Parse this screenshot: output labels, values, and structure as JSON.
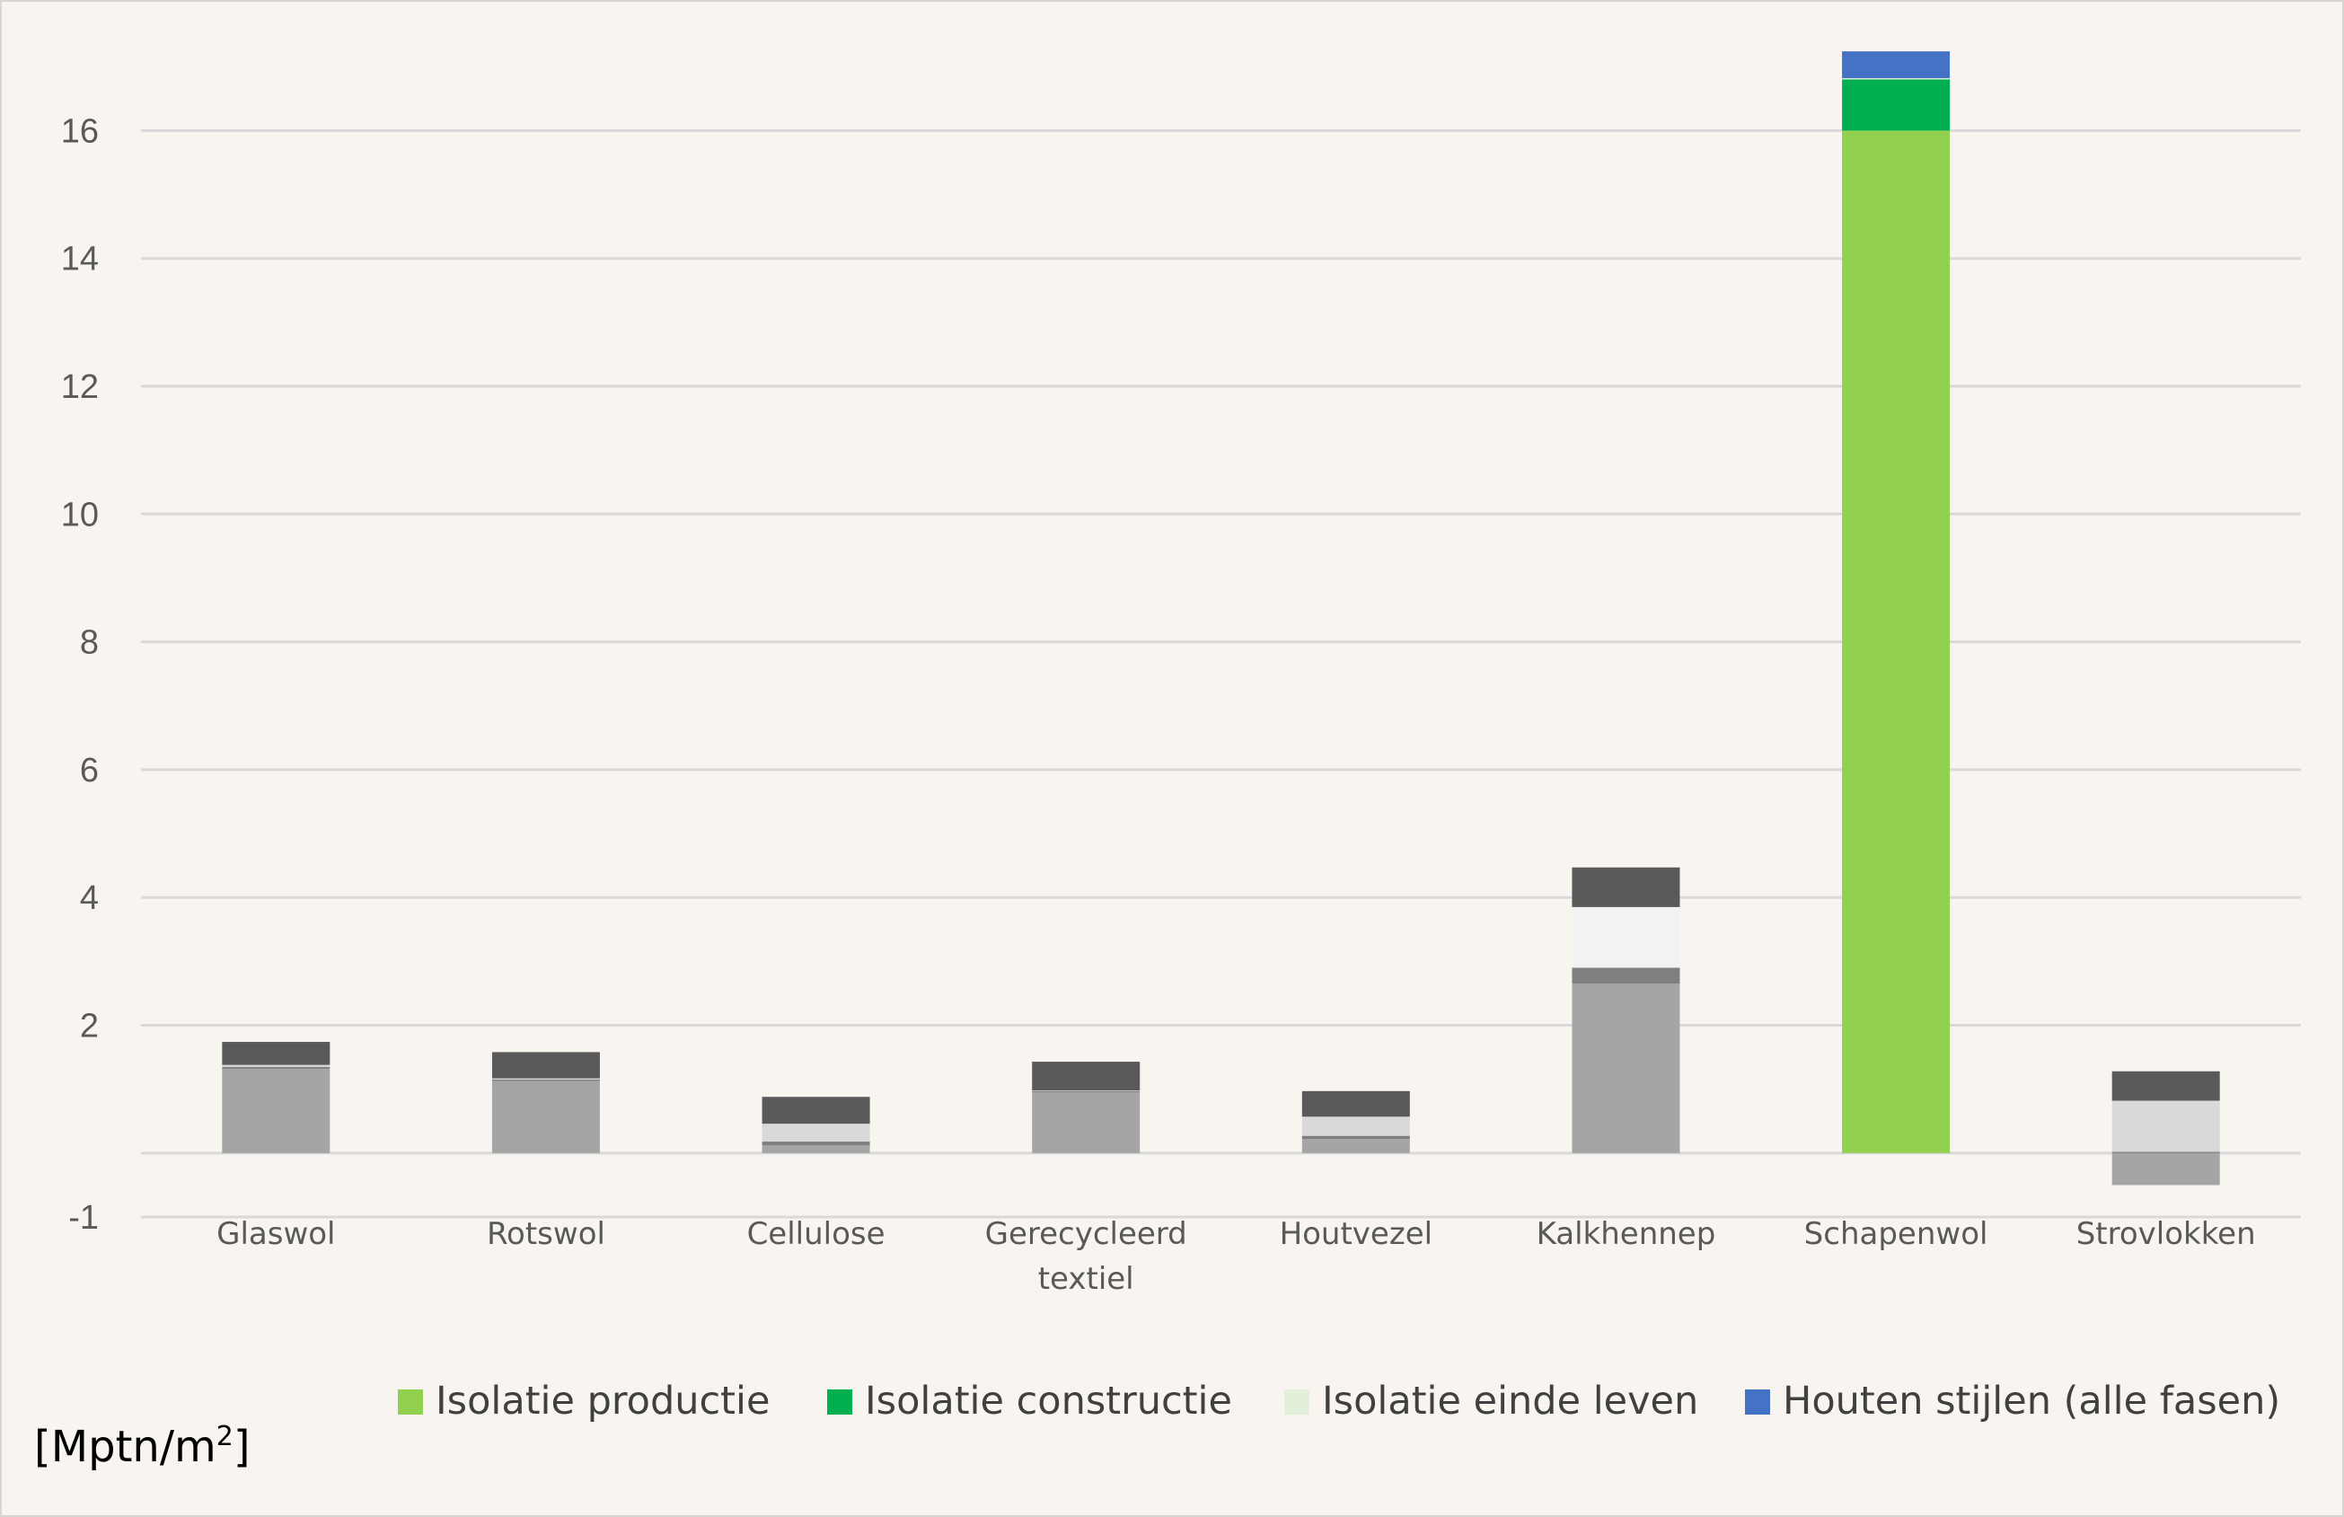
{
  "chart_data": {
    "type": "bar",
    "stacked": true,
    "unit_label": {
      "base": "[Mptn/m",
      "sup": "2",
      "end": "]"
    },
    "categories": [
      {
        "lines": [
          "Glaswol"
        ]
      },
      {
        "lines": [
          "Rotswol"
        ]
      },
      {
        "lines": [
          "Cellulose"
        ]
      },
      {
        "lines": [
          "Gerecycleerd",
          "textiel"
        ]
      },
      {
        "lines": [
          "Houtvezel"
        ]
      },
      {
        "lines": [
          "Kalkhennep"
        ]
      },
      {
        "lines": [
          "Schapenwol"
        ]
      },
      {
        "lines": [
          "Strovlokken"
        ]
      }
    ],
    "ylim": [
      -1,
      17.2
    ],
    "y_ticks": [
      {
        "value": -1,
        "label": "-1"
      },
      {
        "value": 2,
        "label": "2"
      },
      {
        "value": 4,
        "label": "4"
      },
      {
        "value": 6,
        "label": "6"
      },
      {
        "value": 8,
        "label": "8"
      },
      {
        "value": 10,
        "label": "10"
      },
      {
        "value": 12,
        "label": "12"
      },
      {
        "value": 14,
        "label": "14"
      },
      {
        "value": 16,
        "label": "16"
      }
    ],
    "zero_line_value": 0,
    "grid": true,
    "legend_position": "bottom",
    "series": [
      {
        "name": "Isolatie productie",
        "color_by_category": [
          "#a5a5a5",
          "#a5a5a5",
          "#a5a5a5",
          "#a5a5a5",
          "#a5a5a5",
          "#a5a5a5",
          "#92d050",
          "#a5a5a5"
        ],
        "legend_color": "#92d050",
        "values": [
          1.32,
          1.13,
          0.12,
          0.95,
          0.22,
          2.65,
          16.0,
          -0.5
        ]
      },
      {
        "name": "Isolatie constructie",
        "color_by_category": [
          "#7f7f7f",
          "#7f7f7f",
          "#7f7f7f",
          "#7f7f7f",
          "#7f7f7f",
          "#7f7f7f",
          "#00b050",
          "#7f7f7f"
        ],
        "legend_color": "#00b050",
        "values": [
          0.03,
          0.02,
          0.06,
          0.02,
          0.05,
          0.25,
          0.8,
          0.02
        ]
      },
      {
        "name": "Isolatie einde leven",
        "color_by_category": [
          "#d9d9d9",
          "#d9d9d9",
          "#d9d9d9",
          "#d9d9d9",
          "#d9d9d9",
          "#f2f2f2",
          "#e2efda",
          "#d9d9d9"
        ],
        "legend_color": "#e2efda",
        "values": [
          0.03,
          0.02,
          0.28,
          0.01,
          0.3,
          0.95,
          0.02,
          0.8
        ]
      },
      {
        "name": "Houten stijlen (alle fasen)",
        "color_by_category": [
          "#595959",
          "#595959",
          "#595959",
          "#595959",
          "#595959",
          "#595959",
          "#4472c4",
          "#595959"
        ],
        "legend_color": "#4472c4",
        "values": [
          0.36,
          0.41,
          0.42,
          0.45,
          0.4,
          0.62,
          0.42,
          0.46
        ]
      }
    ]
  }
}
